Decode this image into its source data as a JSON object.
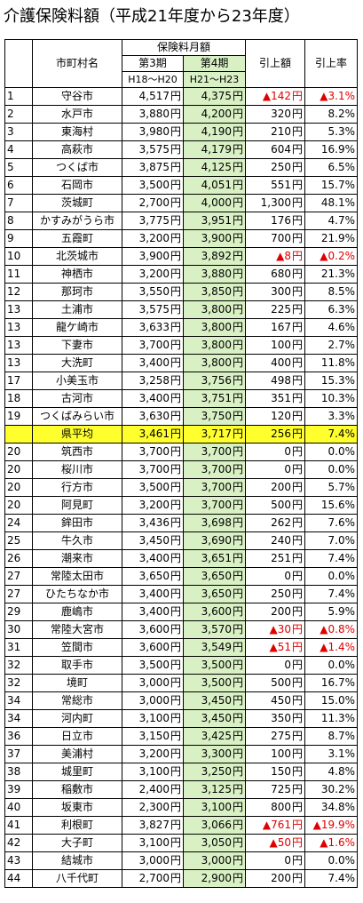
{
  "title": "介護保険料額（平成21年度から23年度）",
  "header": {
    "name": "市町村名",
    "group": "保険料月額",
    "p3": "第3期",
    "p4": "第4期",
    "p3_range": "H18～H20",
    "p4_range": "H21～H23",
    "diff": "引上額",
    "rate": "引上率"
  },
  "unit": "円",
  "rows": [
    {
      "no": "1",
      "name": "守谷市",
      "p3": "4,517",
      "p4": "4,375",
      "diff": "▲142",
      "rate": "▲3.1%",
      "neg": true
    },
    {
      "no": "2",
      "name": "水戸市",
      "p3": "3,880",
      "p4": "4,200",
      "diff": "320",
      "rate": "8.2%"
    },
    {
      "no": "3",
      "name": "東海村",
      "p3": "3,980",
      "p4": "4,190",
      "diff": "210",
      "rate": "5.3%"
    },
    {
      "no": "4",
      "name": "高萩市",
      "p3": "3,575",
      "p4": "4,179",
      "diff": "604",
      "rate": "16.9%"
    },
    {
      "no": "5",
      "name": "つくば市",
      "p3": "3,875",
      "p4": "4,125",
      "diff": "250",
      "rate": "6.5%"
    },
    {
      "no": "6",
      "name": "石岡市",
      "p3": "3,500",
      "p4": "4,051",
      "diff": "551",
      "rate": "15.7%"
    },
    {
      "no": "7",
      "name": "茨城町",
      "p3": "2,700",
      "p4": "4,000",
      "diff": "1,300",
      "rate": "48.1%"
    },
    {
      "no": "8",
      "name": "かすみがうら市",
      "p3": "3,775",
      "p4": "3,951",
      "diff": "176",
      "rate": "4.7%"
    },
    {
      "no": "9",
      "name": "五霞町",
      "p3": "3,200",
      "p4": "3,900",
      "diff": "700",
      "rate": "21.9%"
    },
    {
      "no": "10",
      "name": "北茨城市",
      "p3": "3,900",
      "p4": "3,892",
      "diff": "▲8",
      "rate": "▲0.2%",
      "neg": true
    },
    {
      "no": "11",
      "name": "神栖市",
      "p3": "3,200",
      "p4": "3,880",
      "diff": "680",
      "rate": "21.3%"
    },
    {
      "no": "12",
      "name": "那珂市",
      "p3": "3,550",
      "p4": "3,850",
      "diff": "300",
      "rate": "8.5%"
    },
    {
      "no": "13",
      "name": "土浦市",
      "p3": "3,575",
      "p4": "3,800",
      "diff": "225",
      "rate": "6.3%"
    },
    {
      "no": "13",
      "name": "龍ケ崎市",
      "p3": "3,633",
      "p4": "3,800",
      "diff": "167",
      "rate": "4.6%"
    },
    {
      "no": "13",
      "name": "下妻市",
      "p3": "3,700",
      "p4": "3,800",
      "diff": "100",
      "rate": "2.7%"
    },
    {
      "no": "13",
      "name": "大洗町",
      "p3": "3,400",
      "p4": "3,800",
      "diff": "400",
      "rate": "11.8%"
    },
    {
      "no": "17",
      "name": "小美玉市",
      "p3": "3,258",
      "p4": "3,756",
      "diff": "498",
      "rate": "15.3%"
    },
    {
      "no": "18",
      "name": "古河市",
      "p3": "3,400",
      "p4": "3,751",
      "diff": "351",
      "rate": "10.3%"
    },
    {
      "no": "19",
      "name": "つくばみらい市",
      "p3": "3,630",
      "p4": "3,750",
      "diff": "120",
      "rate": "3.3%"
    },
    {
      "no": "",
      "name": "県平均",
      "p3": "3,461",
      "p4": "3,717",
      "diff": "256",
      "rate": "7.4%",
      "highlight": true
    },
    {
      "no": "20",
      "name": "筑西市",
      "p3": "3,700",
      "p4": "3,700",
      "diff": "0",
      "rate": "0.0%"
    },
    {
      "no": "20",
      "name": "桜川市",
      "p3": "3,700",
      "p4": "3,700",
      "diff": "0",
      "rate": "0.0%"
    },
    {
      "no": "20",
      "name": "行方市",
      "p3": "3,500",
      "p4": "3,700",
      "diff": "200",
      "rate": "5.7%"
    },
    {
      "no": "20",
      "name": "阿見町",
      "p3": "3,200",
      "p4": "3,700",
      "diff": "500",
      "rate": "15.6%"
    },
    {
      "no": "24",
      "name": "鉾田市",
      "p3": "3,436",
      "p4": "3,698",
      "diff": "262",
      "rate": "7.6%"
    },
    {
      "no": "25",
      "name": "牛久市",
      "p3": "3,450",
      "p4": "3,690",
      "diff": "240",
      "rate": "7.0%"
    },
    {
      "no": "26",
      "name": "潮来市",
      "p3": "3,400",
      "p4": "3,651",
      "diff": "251",
      "rate": "7.4%"
    },
    {
      "no": "27",
      "name": "常陸太田市",
      "p3": "3,650",
      "p4": "3,650",
      "diff": "0",
      "rate": "0.0%"
    },
    {
      "no": "27",
      "name": "ひたちなか市",
      "p3": "3,400",
      "p4": "3,650",
      "diff": "250",
      "rate": "7.4%"
    },
    {
      "no": "29",
      "name": "鹿嶋市",
      "p3": "3,400",
      "p4": "3,600",
      "diff": "200",
      "rate": "5.9%"
    },
    {
      "no": "30",
      "name": "常陸大宮市",
      "p3": "3,600",
      "p4": "3,570",
      "diff": "▲30",
      "rate": "▲0.8%",
      "neg": true
    },
    {
      "no": "31",
      "name": "笠間市",
      "p3": "3,600",
      "p4": "3,549",
      "diff": "▲51",
      "rate": "▲1.4%",
      "neg": true
    },
    {
      "no": "32",
      "name": "取手市",
      "p3": "3,500",
      "p4": "3,500",
      "diff": "0",
      "rate": "0.0%"
    },
    {
      "no": "32",
      "name": "境町",
      "p3": "3,000",
      "p4": "3,500",
      "diff": "500",
      "rate": "16.7%"
    },
    {
      "no": "34",
      "name": "常総市",
      "p3": "3,000",
      "p4": "3,450",
      "diff": "450",
      "rate": "15.0%"
    },
    {
      "no": "34",
      "name": "河内町",
      "p3": "3,100",
      "p4": "3,450",
      "diff": "350",
      "rate": "11.3%"
    },
    {
      "no": "36",
      "name": "日立市",
      "p3": "3,150",
      "p4": "3,425",
      "diff": "275",
      "rate": "8.7%"
    },
    {
      "no": "37",
      "name": "美浦村",
      "p3": "3,200",
      "p4": "3,300",
      "diff": "100",
      "rate": "3.1%"
    },
    {
      "no": "38",
      "name": "城里町",
      "p3": "3,100",
      "p4": "3,250",
      "diff": "150",
      "rate": "4.8%"
    },
    {
      "no": "39",
      "name": "稲敷市",
      "p3": "2,400",
      "p4": "3,125",
      "diff": "725",
      "rate": "30.2%"
    },
    {
      "no": "40",
      "name": "坂東市",
      "p3": "2,300",
      "p4": "3,100",
      "diff": "800",
      "rate": "34.8%"
    },
    {
      "no": "41",
      "name": "利根町",
      "p3": "3,827",
      "p4": "3,066",
      "diff": "▲761",
      "rate": "▲19.9%",
      "neg": true
    },
    {
      "no": "42",
      "name": "大子町",
      "p3": "3,100",
      "p4": "3,050",
      "diff": "▲50",
      "rate": "▲1.6%",
      "neg": true
    },
    {
      "no": "43",
      "name": "結城市",
      "p3": "3,000",
      "p4": "3,000",
      "diff": "0",
      "rate": "0.0%"
    },
    {
      "no": "44",
      "name": "八千代町",
      "p3": "2,700",
      "p4": "2,900",
      "diff": "200",
      "rate": "7.4%"
    }
  ]
}
